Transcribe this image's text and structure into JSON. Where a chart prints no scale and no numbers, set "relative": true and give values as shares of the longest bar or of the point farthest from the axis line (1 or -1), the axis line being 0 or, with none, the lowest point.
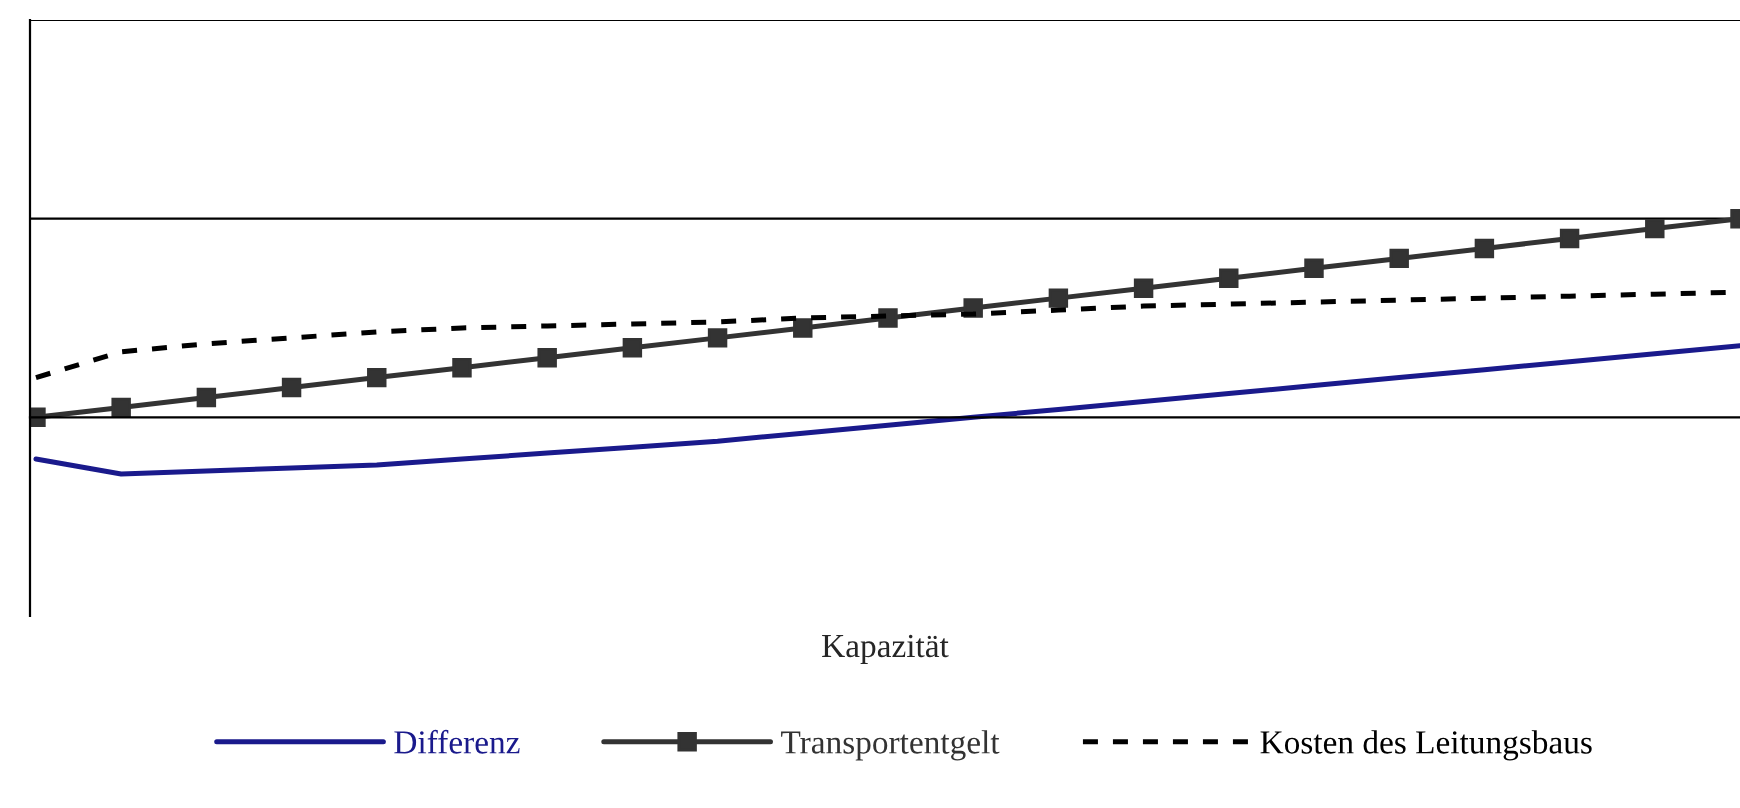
{
  "chart_data": {
    "type": "line",
    "relative": true,
    "xlabel": "Kapazität",
    "ref_lines": [
      {
        "axis": "y",
        "value": 1,
        "color": "#000000"
      },
      {
        "axis": "y",
        "value": 2,
        "color": "#000000"
      }
    ],
    "legend": "bottom",
    "categories": [
      null,
      null,
      null,
      null,
      null,
      null,
      null,
      null,
      null,
      null,
      null,
      null,
      null,
      null,
      null,
      null,
      null,
      null,
      null,
      null,
      null
    ],
    "series": [
      {
        "name": "Differenz",
        "color": "#1a1a8c",
        "marker": "none",
        "line_style": "solid",
        "values": [
          -0.21,
          -0.285,
          -0.27,
          -0.255,
          -0.24,
          -0.21,
          -0.18,
          -0.15,
          -0.12,
          -0.08,
          -0.04,
          0.0,
          0.04,
          0.08,
          0.12,
          0.16,
          0.2,
          0.24,
          0.28,
          0.32,
          0.36
        ]
      },
      {
        "name": "Transportentgelt",
        "color": "#333333",
        "marker": "square",
        "line_style": "solid",
        "values": [
          0.0,
          0.05,
          0.1,
          0.15,
          0.2,
          0.25,
          0.3,
          0.35,
          0.4,
          0.45,
          0.5,
          0.55,
          0.6,
          0.65,
          0.7,
          0.75,
          0.8,
          0.85,
          0.9,
          0.95,
          1.0
        ]
      },
      {
        "name": "Kosten des Leitungsbaus",
        "color": "#000000",
        "marker": "none",
        "line_style": "dotted",
        "values": [
          0.2,
          0.33,
          0.37,
          0.4,
          0.43,
          0.45,
          0.46,
          0.47,
          0.48,
          0.5,
          0.51,
          0.52,
          0.54,
          0.56,
          0.57,
          0.58,
          0.59,
          0.6,
          0.61,
          0.62,
          0.63
        ]
      }
    ]
  }
}
